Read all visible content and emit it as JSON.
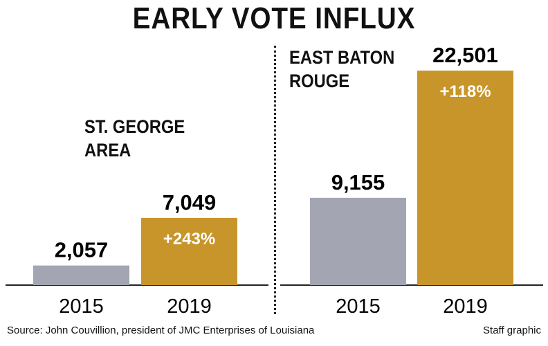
{
  "title": "EARLY VOTE INFLUX",
  "source": "Source: John Couvillion, president of JMC Enterprises of Louisiana",
  "credit": "Staff graphic",
  "colors": {
    "bar_2015": "#a3a5b2",
    "bar_2019": "#c8952a",
    "axis": "#222222"
  },
  "chart_data": [
    {
      "type": "bar",
      "title": "ST. GEORGE AREA",
      "title_lines": [
        "ST. GEORGE",
        "AREA"
      ],
      "categories": [
        "2015",
        "2019"
      ],
      "values": [
        2057,
        7049
      ],
      "value_labels": [
        "2,057",
        "7,049"
      ],
      "change_labels": [
        "",
        "+243%"
      ]
    },
    {
      "type": "bar",
      "title": "EAST BATON ROUGE",
      "title_lines": [
        "EAST BATON",
        "ROUGE"
      ],
      "categories": [
        "2015",
        "2019"
      ],
      "values": [
        9155,
        22501
      ],
      "value_labels": [
        "9,155",
        "22,501"
      ],
      "change_labels": [
        "",
        "+118%"
      ]
    }
  ]
}
